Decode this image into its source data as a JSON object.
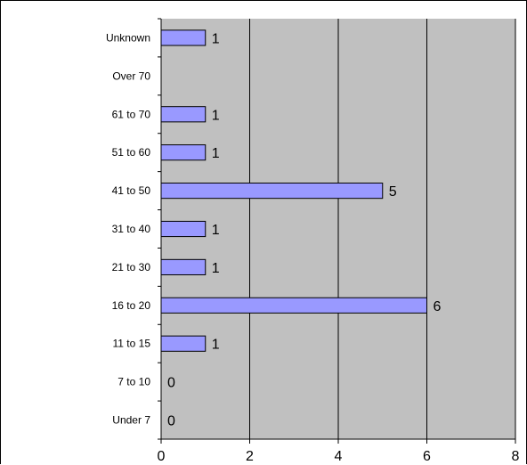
{
  "chart_data": {
    "type": "bar",
    "orientation": "horizontal",
    "categories": [
      "Unknown",
      "Over 70",
      "61 to 70",
      "51 to 60",
      "41 to 50",
      "31 to 40",
      "21 to 30",
      "16 to 20",
      "11 to 15",
      "7 to 10",
      "Under 7"
    ],
    "values": [
      1,
      null,
      1,
      1,
      5,
      1,
      1,
      6,
      1,
      0,
      0
    ],
    "data_labels": [
      "1",
      "",
      "1",
      "1",
      "5",
      "1",
      "1",
      "6",
      "1",
      "0",
      "0"
    ],
    "xlim": [
      0,
      8
    ],
    "x_ticks": [
      "0",
      "2",
      "4",
      "6",
      "8"
    ],
    "title": "",
    "xlabel": "",
    "ylabel": "",
    "grid": "vertical",
    "legend": "none",
    "colors": {
      "bar_fill": "#9999ff",
      "bar_stroke": "#000000",
      "plot_background": "#c0c0c0",
      "gridline": "#000000"
    }
  }
}
